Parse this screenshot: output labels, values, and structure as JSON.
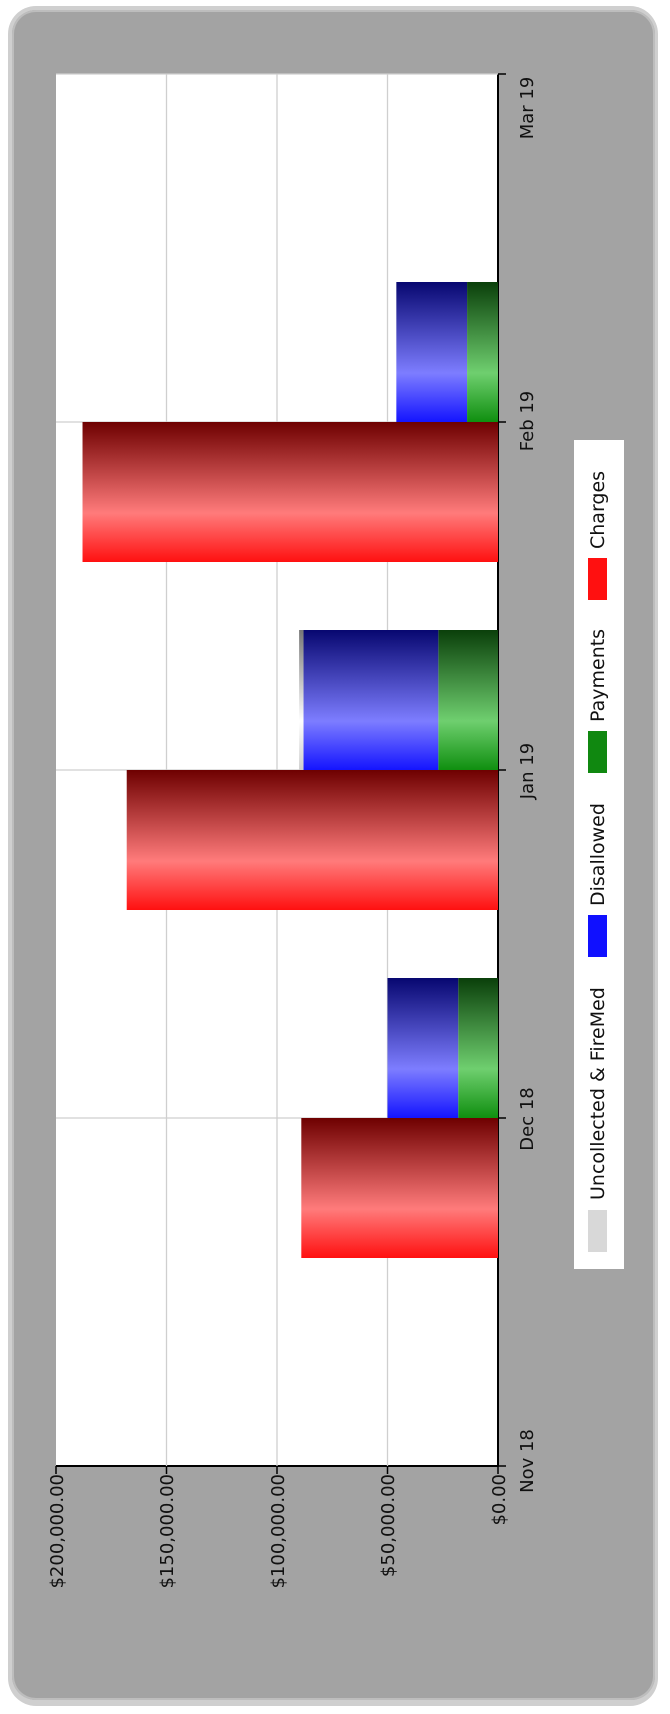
{
  "chart_data": {
    "type": "bar",
    "orientation": "vertical, rendered rotated 90° clockwise",
    "categories": [
      "Nov 18",
      "Dec 18",
      "Jan 19",
      "Feb 19",
      "Mar 19"
    ],
    "y_ticks": [
      "$0.00",
      "$50,000.00",
      "$100,000.00",
      "$150,000.00",
      "$200,000.00"
    ],
    "ylim": [
      0,
      200000
    ],
    "grid": true,
    "legend_position": "right",
    "groups": [
      {
        "category": "Dec 18",
        "charges": 89000,
        "payments": 18000,
        "disallowed": 32000,
        "uncollected": 0
      },
      {
        "category": "Jan 19",
        "charges": 168000,
        "payments": 27000,
        "disallowed": 61000,
        "uncollected": 2000
      },
      {
        "category": "Feb 19",
        "charges": 188000,
        "payments": 14000,
        "disallowed": 32000,
        "uncollected": 0
      }
    ],
    "series": [
      {
        "name": "Uncollected & FireMed",
        "color": "#d8d8d8"
      },
      {
        "name": "Disallowed",
        "color": "#1010ff"
      },
      {
        "name": "Payments",
        "color": "#108810"
      },
      {
        "name": "Charges",
        "color": "#ff1010"
      }
    ]
  }
}
